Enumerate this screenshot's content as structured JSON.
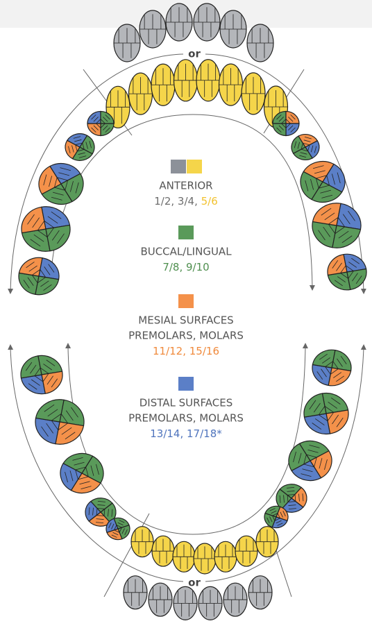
{
  "upper_separator": "or",
  "lower_separator": "or",
  "legend": [
    {
      "swatch_colors": [
        "#8c9199",
        "#f5d54a"
      ],
      "lines": [
        "ANTERIOR"
      ],
      "codes": [
        {
          "text": "1/2, 3/4, ",
          "color": "#6e6e6e"
        },
        {
          "text": "5/6",
          "color": "#f2c230"
        }
      ]
    },
    {
      "swatch_colors": [
        "#5a9a5a"
      ],
      "lines": [
        "BUCCAL/LINGUAL"
      ],
      "codes": [
        {
          "text": "7/8, 9/10",
          "color": "#4f8f4f"
        }
      ]
    },
    {
      "swatch_colors": [
        "#f4914a"
      ],
      "lines": [
        "MESIAL SURFACES",
        "PREMOLARS, MOLARS"
      ],
      "codes": [
        {
          "text": "11/12, 15/16",
          "color": "#f08a3c"
        }
      ]
    },
    {
      "swatch_colors": [
        "#5b7fc7"
      ],
      "lines": [
        "DISTAL SURFACES",
        "PREMOLARS, MOLARS"
      ],
      "codes": [
        {
          "text": "13/14, 17/18*",
          "color": "#4f74bd"
        }
      ]
    }
  ]
}
